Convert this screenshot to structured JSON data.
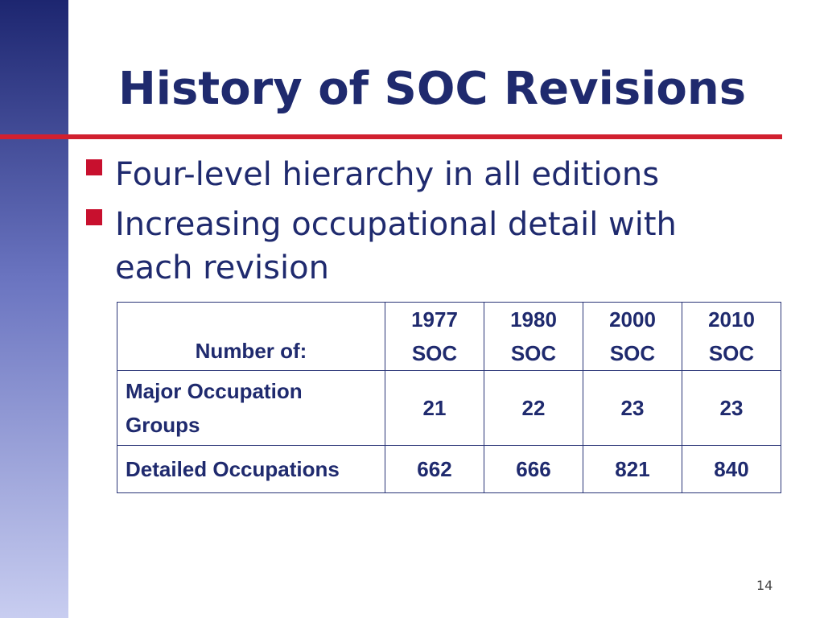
{
  "title": "History of SOC Revisions",
  "bullets": [
    "Four-level hierarchy in all editions",
    "Increasing occupational detail with each revision"
  ],
  "table": {
    "header": [
      "Number of:",
      "1977 SOC",
      "1980 SOC",
      "2000 SOC",
      "2010 SOC"
    ],
    "rows": [
      [
        "Major Occupation Groups",
        21,
        22,
        23,
        23
      ],
      [
        "Detailed Occupations",
        662,
        666,
        821,
        840
      ]
    ]
  },
  "page_number": 14
}
